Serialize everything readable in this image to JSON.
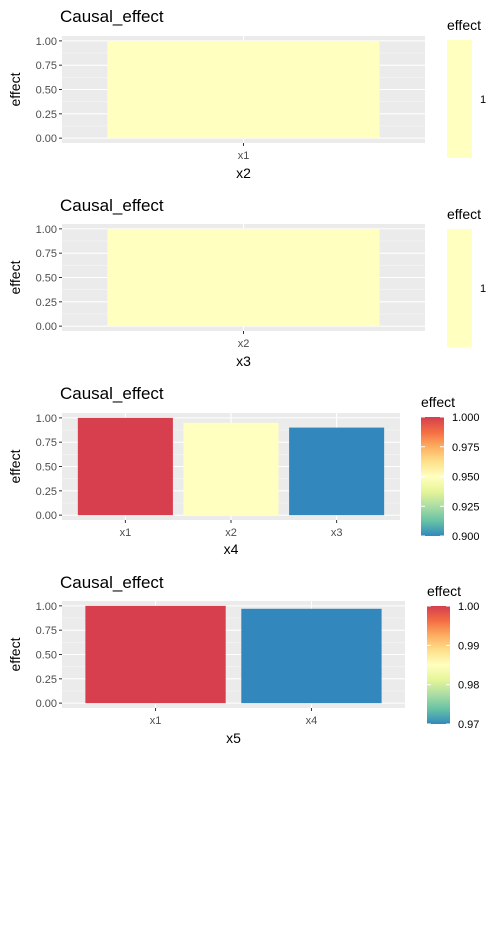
{
  "chart_data": [
    {
      "type": "bar",
      "title": "Causal_effect",
      "xlabel": "x2",
      "ylabel": "effect",
      "categories": [
        "x1"
      ],
      "values": [
        1.0
      ],
      "ylim": [
        0,
        1
      ],
      "yticks": [
        "0.00",
        "0.25",
        "0.50",
        "0.75",
        "1.00"
      ],
      "grid": true,
      "legend": {
        "title": "effect",
        "type": "colorbar",
        "placement": "right",
        "labels": [
          "1"
        ],
        "range": [
          1,
          1
        ]
      },
      "bar_colors": [
        "#ffffbf"
      ]
    },
    {
      "type": "bar",
      "title": "Causal_effect",
      "xlabel": "x3",
      "ylabel": "effect",
      "categories": [
        "x2"
      ],
      "values": [
        1.0
      ],
      "ylim": [
        0,
        1
      ],
      "yticks": [
        "0.00",
        "0.25",
        "0.50",
        "0.75",
        "1.00"
      ],
      "grid": true,
      "legend": {
        "title": "effect",
        "type": "colorbar",
        "placement": "right",
        "labels": [
          "1"
        ],
        "range": [
          1,
          1
        ]
      },
      "bar_colors": [
        "#ffffbf"
      ]
    },
    {
      "type": "bar",
      "title": "Causal_effect",
      "xlabel": "x4",
      "ylabel": "effect",
      "categories": [
        "x1",
        "x2",
        "x3"
      ],
      "values": [
        1.0,
        0.95,
        0.9
      ],
      "ylim": [
        0,
        1
      ],
      "yticks": [
        "0.00",
        "0.25",
        "0.50",
        "0.75",
        "1.00"
      ],
      "grid": true,
      "legend": {
        "title": "effect",
        "type": "colorbar",
        "placement": "right",
        "labels": [
          "1.000",
          "0.975",
          "0.950",
          "0.925",
          "0.900"
        ],
        "range": [
          0.9,
          1.0
        ]
      },
      "bar_colors": [
        "#d73f4f",
        "#ffffbf",
        "#3288bd"
      ]
    },
    {
      "type": "bar",
      "title": "Causal_effect",
      "xlabel": "x5",
      "ylabel": "effect",
      "categories": [
        "x1",
        "x4"
      ],
      "values": [
        1.0,
        0.97
      ],
      "ylim": [
        0,
        1
      ],
      "yticks": [
        "0.00",
        "0.25",
        "0.50",
        "0.75",
        "1.00"
      ],
      "grid": true,
      "legend": {
        "title": "effect",
        "type": "colorbar",
        "placement": "right",
        "labels": [
          "1.00",
          "0.99",
          "0.98",
          "0.97"
        ],
        "range": [
          0.97,
          1.0
        ]
      },
      "bar_colors": [
        "#d73f4f",
        "#3288bd"
      ]
    }
  ],
  "colors": {
    "panel_bg": "#ebebeb",
    "grid_major": "#ffffff",
    "grid_minor": "#f5f5f5",
    "tick_text": "#4d4d4d",
    "text": "#000000",
    "palette": [
      "#d53e4f",
      "#f46d43",
      "#fdae61",
      "#fee08b",
      "#ffffbf",
      "#e6f598",
      "#abdda4",
      "#66c2a5",
      "#3288bd"
    ]
  }
}
